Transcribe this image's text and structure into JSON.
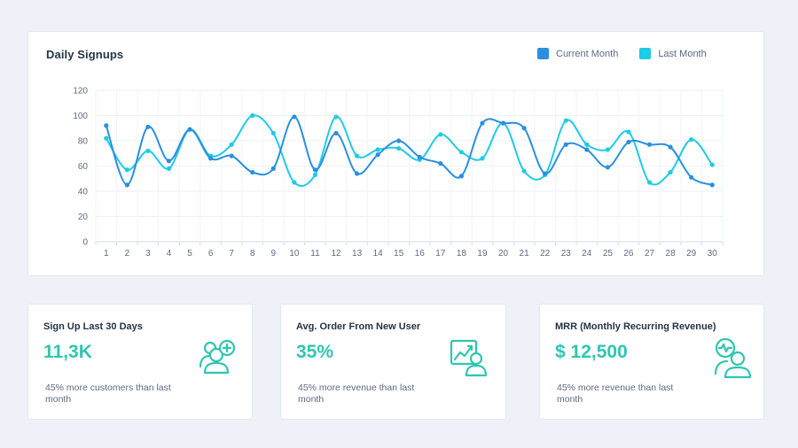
{
  "chart": {
    "title": "Daily Signups",
    "legend": [
      {
        "label": "Current Month",
        "color": "#2b8fe0"
      },
      {
        "label": "Last Month",
        "color": "#1ecbe6"
      }
    ]
  },
  "chart_data": {
    "type": "line",
    "title": "Daily Signups",
    "xlabel": "",
    "ylabel": "",
    "x": [
      1,
      2,
      3,
      4,
      5,
      6,
      7,
      8,
      9,
      10,
      11,
      12,
      13,
      14,
      15,
      16,
      17,
      18,
      19,
      20,
      21,
      22,
      23,
      24,
      25,
      26,
      27,
      28,
      29,
      30
    ],
    "ylim": [
      0,
      120
    ],
    "yticks": [
      0,
      20,
      40,
      60,
      80,
      100,
      120
    ],
    "grid": true,
    "legend_position": "top-right",
    "series": [
      {
        "name": "Current Month",
        "color": "#2b8fe0",
        "values": [
          92,
          45,
          91,
          64,
          89,
          66,
          68,
          55,
          58,
          99,
          57,
          86,
          54,
          69,
          80,
          67,
          62,
          52,
          94,
          94,
          90,
          54,
          77,
          73,
          59,
          79,
          77,
          75,
          51,
          45
        ]
      },
      {
        "name": "Last Month",
        "color": "#1ecbe6",
        "values": [
          82,
          57,
          72,
          58,
          89,
          68,
          77,
          100,
          86,
          47,
          53,
          99,
          68,
          73,
          74,
          65,
          85,
          71,
          66,
          94,
          56,
          53,
          96,
          77,
          73,
          87,
          47,
          55,
          81,
          61
        ]
      }
    ]
  },
  "stats": [
    {
      "title": "Sign Up Last 30 Days",
      "value": "11,3K",
      "note": "45% more customers than last month",
      "icon": "add-user-icon"
    },
    {
      "title": "Avg. Order From New User",
      "value": "35%",
      "note": "45% more revenue than last month",
      "icon": "user-growth-chart-icon"
    },
    {
      "title": "MRR (Monthly Recurring Revenue)",
      "value": "$ 12,500",
      "note": "45% more revenue than last month",
      "icon": "users-pulse-icon"
    }
  ],
  "colors": {
    "accent": "#2ec6b0",
    "background": "#eef2f8"
  }
}
